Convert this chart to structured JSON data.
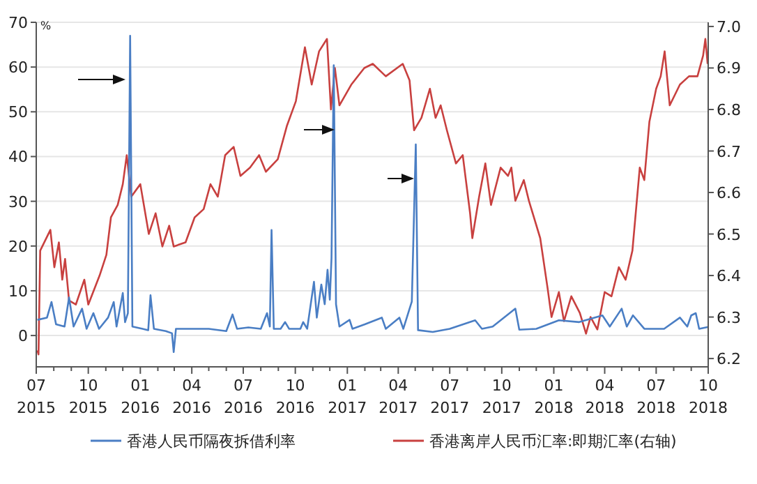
{
  "chart_data": {
    "type": "line",
    "ylabel": "%",
    "legend": "bottom",
    "grid": "y",
    "xlim": [
      "2015-07-01",
      "2018-10-01"
    ],
    "xticks": [
      {
        "value": "2015-07-01",
        "label": "07\n2015"
      },
      {
        "value": "2015-08-01",
        "label": null
      },
      {
        "value": "2015-09-01",
        "label": null
      },
      {
        "value": "2015-10-01",
        "label": "10\n2015"
      },
      {
        "value": "2015-11-01",
        "label": null
      },
      {
        "value": "2015-12-01",
        "label": null
      },
      {
        "value": "2016-01-01",
        "label": "01\n2016"
      },
      {
        "value": "2016-02-01",
        "label": null
      },
      {
        "value": "2016-03-01",
        "label": null
      },
      {
        "value": "2016-04-01",
        "label": "04\n2016"
      },
      {
        "value": "2016-05-01",
        "label": null
      },
      {
        "value": "2016-06-01",
        "label": null
      },
      {
        "value": "2016-07-01",
        "label": "07\n2016"
      },
      {
        "value": "2016-08-01",
        "label": null
      },
      {
        "value": "2016-09-01",
        "label": null
      },
      {
        "value": "2016-10-01",
        "label": "10\n2016"
      },
      {
        "value": "2016-11-01",
        "label": null
      },
      {
        "value": "2016-12-01",
        "label": null
      },
      {
        "value": "2017-01-01",
        "label": "01\n2017"
      },
      {
        "value": "2017-02-01",
        "label": null
      },
      {
        "value": "2017-03-01",
        "label": null
      },
      {
        "value": "2017-04-01",
        "label": "04\n2017"
      },
      {
        "value": "2017-05-01",
        "label": null
      },
      {
        "value": "2017-06-01",
        "label": null
      },
      {
        "value": "2017-07-01",
        "label": "07\n2017"
      },
      {
        "value": "2017-08-01",
        "label": null
      },
      {
        "value": "2017-09-01",
        "label": null
      },
      {
        "value": "2017-10-01",
        "label": "10\n2017"
      },
      {
        "value": "2017-11-01",
        "label": null
      },
      {
        "value": "2017-12-01",
        "label": null
      },
      {
        "value": "2018-01-01",
        "label": "01\n2018"
      },
      {
        "value": "2018-02-01",
        "label": null
      },
      {
        "value": "2018-03-01",
        "label": null
      },
      {
        "value": "2018-04-01",
        "label": "04\n2018"
      },
      {
        "value": "2018-05-01",
        "label": null
      },
      {
        "value": "2018-06-01",
        "label": null
      },
      {
        "value": "2018-07-01",
        "label": "07\n2018"
      },
      {
        "value": "2018-08-01",
        "label": null
      },
      {
        "value": "2018-09-01",
        "label": null
      },
      {
        "value": "2018-10-01",
        "label": "10\n2018"
      }
    ],
    "ylim": [
      -7,
      70
    ],
    "yticks": [
      0,
      10,
      20,
      30,
      40,
      50,
      60,
      70
    ],
    "y2lim": [
      6.18,
      7.01
    ],
    "y2ticks": [
      6.2,
      6.3,
      6.4,
      6.5,
      6.6,
      6.7,
      6.8,
      6.9,
      {
        "value": 7.0,
        "label": "7.0"
      }
    ],
    "series": [
      {
        "name": "香港人民币隔夜拆借利率",
        "color": "#4a7ec4",
        "x": [
          "2015-07-03",
          "2015-07-20",
          "2015-07-28",
          "2015-08-05",
          "2015-08-20",
          "2015-08-28",
          "2015-09-05",
          "2015-09-20",
          "2015-09-28",
          "2015-10-10",
          "2015-10-20",
          "2015-11-05",
          "2015-11-15",
          "2015-11-20",
          "2015-12-01",
          "2015-12-05",
          "2015-12-10",
          "2015-12-14",
          "2015-12-18",
          "2016-01-05",
          "2016-01-15",
          "2016-01-19",
          "2016-01-25",
          "2016-02-15",
          "2016-02-26",
          "2016-02-29",
          "2016-03-04",
          "2016-04-01",
          "2016-05-01",
          "2016-06-01",
          "2016-06-12",
          "2016-06-20",
          "2016-07-10",
          "2016-08-01",
          "2016-08-12",
          "2016-08-17",
          "2016-08-20",
          "2016-08-24",
          "2016-09-05",
          "2016-09-13",
          "2016-09-20",
          "2016-10-10",
          "2016-10-15",
          "2016-10-22",
          "2016-11-03",
          "2016-11-08",
          "2016-11-16",
          "2016-11-22",
          "2016-11-27",
          "2016-12-01",
          "2016-12-04",
          "2016-12-08",
          "2016-12-12",
          "2016-12-18",
          "2017-01-05",
          "2017-01-10",
          "2017-02-01",
          "2017-03-03",
          "2017-03-10",
          "2017-04-03",
          "2017-04-10",
          "2017-04-25",
          "2017-05-02",
          "2017-05-06",
          "2017-06-01",
          "2017-07-01",
          "2017-08-15",
          "2017-08-27",
          "2017-09-15",
          "2017-10-25",
          "2017-11-01",
          "2017-12-01",
          "2018-01-10",
          "2018-02-15",
          "2018-03-28",
          "2018-04-10",
          "2018-05-01",
          "2018-05-10",
          "2018-05-21",
          "2018-06-10",
          "2018-07-15",
          "2018-08-12",
          "2018-08-25",
          "2018-09-01",
          "2018-09-09",
          "2018-09-15",
          "2018-09-30"
        ],
        "values": [
          3.5,
          4,
          7.5,
          2.5,
          2,
          8.5,
          2,
          6,
          1.5,
          5,
          1.5,
          4,
          7.5,
          2,
          9.5,
          3,
          5,
          67,
          2,
          1.5,
          1.2,
          9,
          1.5,
          1,
          0.5,
          -3.7,
          1.5,
          1.5,
          1.5,
          1,
          4.7,
          1.5,
          1.8,
          1.5,
          5,
          2,
          23.6,
          1.5,
          1.5,
          3,
          1.5,
          1.5,
          3,
          1.5,
          12,
          4,
          11.4,
          7,
          14.7,
          8,
          17.3,
          60.4,
          7,
          2,
          3.5,
          1.5,
          2.5,
          4,
          1.5,
          4,
          1.5,
          7.6,
          42.7,
          1.2,
          0.8,
          1.5,
          3.4,
          1.5,
          2,
          6,
          1.3,
          1.5,
          3.4,
          3,
          4.5,
          2,
          6,
          2,
          4.5,
          1.5,
          1.5,
          4,
          2,
          4.5,
          5,
          1.5,
          1.9
        ]
      },
      {
        "name": "香港离岸人民币汇率:即期汇率(右轴)",
        "color": "#c8403f",
        "axis": "y2",
        "x": [
          "2015-07-03",
          "2015-07-05",
          "2015-07-08",
          "2015-07-26",
          "2015-08-02",
          "2015-08-10",
          "2015-08-16",
          "2015-08-21",
          "2015-08-28",
          "2015-09-09",
          "2015-09-24",
          "2015-10-01",
          "2015-10-21",
          "2015-11-02",
          "2015-11-10",
          "2015-11-22",
          "2015-12-01",
          "2015-12-08",
          "2015-12-16",
          "2016-01-01",
          "2016-01-16",
          "2016-01-28",
          "2016-02-09",
          "2016-02-21",
          "2016-02-29",
          "2016-03-21",
          "2016-04-06",
          "2016-04-22",
          "2016-05-04",
          "2016-05-17",
          "2016-05-30",
          "2016-06-14",
          "2016-06-26",
          "2016-07-13",
          "2016-07-29",
          "2016-08-10",
          "2016-08-31",
          "2016-09-16",
          "2016-10-02",
          "2016-10-18",
          "2016-10-30",
          "2016-11-12",
          "2016-11-26",
          "2016-12-03",
          "2016-12-10",
          "2016-12-18",
          "2017-01-08",
          "2017-01-31",
          "2017-02-15",
          "2017-03-10",
          "2017-04-09",
          "2017-04-21",
          "2017-04-29",
          "2017-05-12",
          "2017-05-27",
          "2017-06-06",
          "2017-06-15",
          "2017-06-26",
          "2017-07-12",
          "2017-07-24",
          "2017-08-06",
          "2017-08-10",
          "2017-08-22",
          "2017-09-02",
          "2017-09-12",
          "2017-09-29",
          "2017-10-12",
          "2017-10-18",
          "2017-10-25",
          "2017-11-09",
          "2017-11-18",
          "2017-12-08",
          "2017-12-21",
          "2017-12-28",
          "2018-01-10",
          "2018-01-19",
          "2018-02-01",
          "2018-02-16",
          "2018-02-27",
          "2018-03-07",
          "2018-03-19",
          "2018-04-01",
          "2018-04-13",
          "2018-04-26",
          "2018-05-08",
          "2018-05-20",
          "2018-06-02",
          "2018-06-10",
          "2018-06-19",
          "2018-07-01",
          "2018-07-09",
          "2018-07-16",
          "2018-07-25",
          "2018-08-12",
          "2018-08-28",
          "2018-09-12",
          "2018-09-22",
          "2018-09-26",
          "2018-09-30"
        ],
        "values": [
          6.22,
          6.21,
          6.46,
          6.51,
          6.42,
          6.48,
          6.39,
          6.44,
          6.34,
          6.33,
          6.39,
          6.33,
          6.4,
          6.45,
          6.54,
          6.57,
          6.62,
          6.69,
          6.59,
          6.62,
          6.5,
          6.55,
          6.47,
          6.52,
          6.47,
          6.48,
          6.54,
          6.56,
          6.62,
          6.59,
          6.69,
          6.71,
          6.64,
          6.66,
          6.69,
          6.65,
          6.68,
          6.76,
          6.82,
          6.95,
          6.86,
          6.94,
          6.97,
          6.8,
          6.9,
          6.81,
          6.86,
          6.9,
          6.91,
          6.88,
          6.91,
          6.87,
          6.75,
          6.78,
          6.85,
          6.78,
          6.81,
          6.75,
          6.67,
          6.69,
          6.55,
          6.49,
          6.59,
          6.67,
          6.57,
          6.66,
          6.64,
          6.66,
          6.58,
          6.63,
          6.58,
          6.49,
          6.37,
          6.3,
          6.36,
          6.29,
          6.35,
          6.31,
          6.26,
          6.3,
          6.27,
          6.36,
          6.35,
          6.42,
          6.39,
          6.46,
          6.66,
          6.63,
          6.77,
          6.85,
          6.88,
          6.94,
          6.81,
          6.86,
          6.88,
          6.88,
          6.93,
          6.97,
          6.91
        ]
      }
    ]
  }
}
